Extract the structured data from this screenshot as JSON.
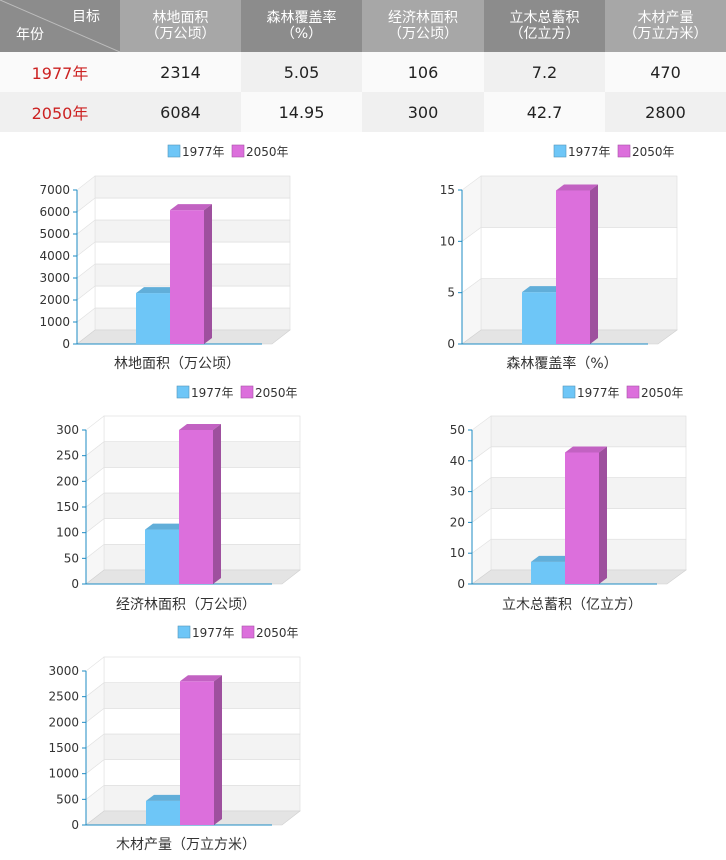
{
  "table": {
    "corner_top": "目标",
    "corner_bottom": "年份",
    "headers": [
      "林地面积\n（万公顷）",
      "森林覆盖率\n（%）",
      "经济林面积\n（万公顷）",
      "立木总蓄积\n（亿立方）",
      "木材产量\n（万立方米）"
    ],
    "header_line1": [
      "林地面积",
      "森林覆盖率",
      "经济林面积",
      "立木总蓄积",
      "木材产量"
    ],
    "header_line2": [
      "（万公顷）",
      "（%）",
      "（万公顷）",
      "（亿立方）",
      "（万立方米）"
    ],
    "rows": [
      {
        "year": "1977年",
        "values": [
          "2314",
          "5.05",
          "106",
          "7.2",
          "470"
        ]
      },
      {
        "year": "2050年",
        "values": [
          "6084",
          "14.95",
          "300",
          "42.7",
          "2800"
        ]
      }
    ]
  },
  "colors": {
    "series_1977": "#6ec6f7",
    "series_2050": "#dc6fdc",
    "year_text": "#cc2222",
    "axis": "#1e8bc3"
  },
  "chart_data": [
    {
      "type": "bar",
      "categories": [
        "林地面积（万公顷）"
      ],
      "xlabel": "林地面积（万公顷）",
      "series": [
        {
          "name": "1977年",
          "values": [
            2314
          ]
        },
        {
          "name": "2050年",
          "values": [
            6084
          ]
        }
      ],
      "ylim": [
        0,
        7000
      ],
      "yticks": [
        0,
        1000,
        2000,
        3000,
        4000,
        5000,
        6000,
        7000
      ],
      "legend": "top"
    },
    {
      "type": "bar",
      "categories": [
        "森林覆盖率（%）"
      ],
      "xlabel": "森林覆盖率（%）",
      "series": [
        {
          "name": "1977年",
          "values": [
            5.05
          ]
        },
        {
          "name": "2050年",
          "values": [
            14.95
          ]
        }
      ],
      "ylim": [
        0,
        15
      ],
      "yticks": [
        0,
        5,
        10,
        15
      ],
      "legend": "top"
    },
    {
      "type": "bar",
      "categories": [
        "经济林面积（万公顷）"
      ],
      "xlabel": "经济林面积（万公顷）",
      "series": [
        {
          "name": "1977年",
          "values": [
            106
          ]
        },
        {
          "name": "2050年",
          "values": [
            300
          ]
        }
      ],
      "ylim": [
        0,
        300
      ],
      "yticks": [
        0,
        50,
        100,
        150,
        200,
        250,
        300
      ],
      "legend": "top"
    },
    {
      "type": "bar",
      "categories": [
        "立木总蓄积（亿立方）"
      ],
      "xlabel": "立木总蓄积（亿立方）",
      "series": [
        {
          "name": "1977年",
          "values": [
            7.2
          ]
        },
        {
          "name": "2050年",
          "values": [
            42.7
          ]
        }
      ],
      "ylim": [
        0,
        50
      ],
      "yticks": [
        0,
        10,
        20,
        30,
        40,
        50
      ],
      "legend": "top"
    },
    {
      "type": "bar",
      "categories": [
        "木材产量（万立方米）"
      ],
      "xlabel": "木材产量（万立方米）",
      "series": [
        {
          "name": "1977年",
          "values": [
            470
          ]
        },
        {
          "name": "2050年",
          "values": [
            2800
          ]
        }
      ],
      "ylim": [
        0,
        3000
      ],
      "yticks": [
        0,
        500,
        1000,
        1500,
        2000,
        2500,
        3000
      ],
      "legend": "top"
    }
  ]
}
